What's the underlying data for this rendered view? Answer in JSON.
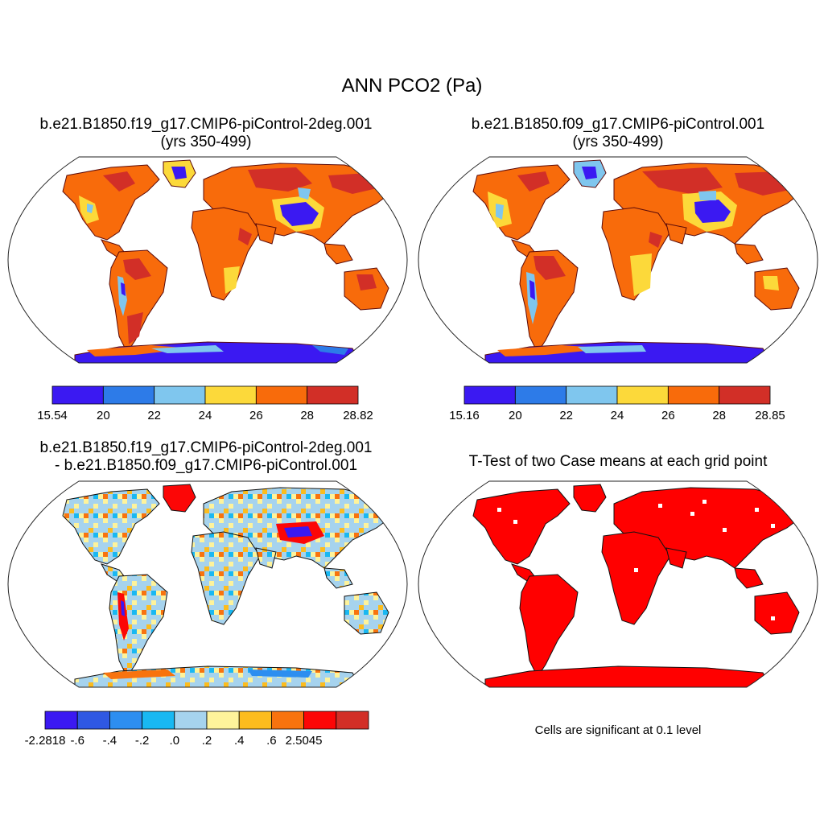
{
  "main_title": "ANN PCO2 (Pa)",
  "panels": {
    "p1": {
      "title_line1": "b.e21.B1850.f19_g17.CMIP6-piControl-2deg.001",
      "title_line2": "(yrs 350-499)"
    },
    "p2": {
      "title_line1": "b.e21.B1850.f09_g17.CMIP6-piControl.001",
      "title_line2": "(yrs 350-499)"
    },
    "p3": {
      "title_line1": "b.e21.B1850.f19_g17.CMIP6-piControl-2deg.001",
      "title_line2": "- b.e21.B1850.f09_g17.CMIP6-piControl.001"
    },
    "p4": {
      "title_line1": "T-Test of two Case means at each grid point",
      "note": "Cells are significant at 0.1 level"
    }
  },
  "colorbars": {
    "cb1": {
      "labels": [
        "15.54",
        "20",
        "22",
        "24",
        "26",
        "28",
        "28.82"
      ],
      "colors": [
        "#3b19f2",
        "#2d7be8",
        "#7fc6ee",
        "#fcd93a",
        "#f86b0b",
        "#d22f27"
      ]
    },
    "cb2": {
      "labels": [
        "15.16",
        "20",
        "22",
        "24",
        "26",
        "28",
        "28.85"
      ],
      "colors": [
        "#3b19f2",
        "#2d7be8",
        "#7fc6ee",
        "#fcd93a",
        "#f86b0b",
        "#d22f27"
      ]
    },
    "cb3": {
      "labels": [
        "-2.2818",
        "-.6",
        "-.4",
        "-.2",
        ".0",
        ".2",
        ".4",
        ".6",
        "2.5045"
      ],
      "colors": [
        "#3b19f2",
        "#2f58e3",
        "#2d8ef0",
        "#19b8f2",
        "#a6d3ee",
        "#fef39b",
        "#fcbc1e",
        "#f8730e",
        "#fc0606",
        "#d22f27"
      ]
    }
  },
  "significance_color": "#ff0000"
}
